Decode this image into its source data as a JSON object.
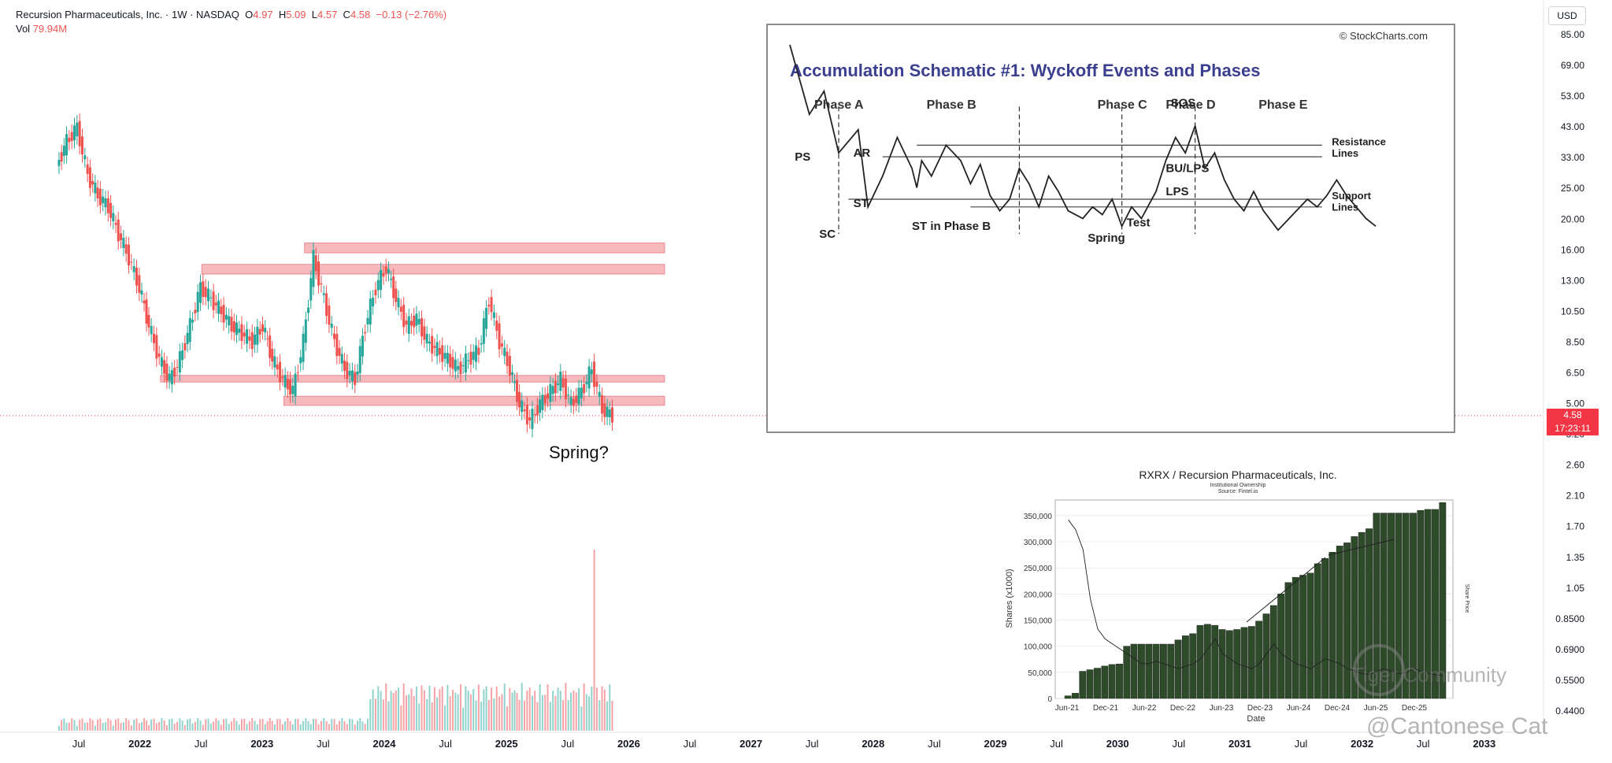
{
  "header": {
    "title": "Recursion Pharmaceuticals, Inc. · 1W · NASDAQ",
    "open_label": "O",
    "open": "4.97",
    "high_label": "H",
    "high": "5.09",
    "low_label": "L",
    "low": "4.57",
    "close_label": "C",
    "close": "4.58",
    "change": "−0.13 (−2.76%)",
    "vol_label": "Vol",
    "vol": "79.94M"
  },
  "price_scale": {
    "currency": "USD",
    "ticks": [
      "85.00",
      "69.00",
      "53.00",
      "43.00",
      "33.00",
      "25.00",
      "20.00",
      "16.00",
      "13.00",
      "10.50",
      "8.50",
      "6.50",
      "5.00",
      "3.20",
      "2.60",
      "2.10",
      "1.70",
      "1.35",
      "1.05",
      "0.8500",
      "0.6900",
      "0.5500",
      "0.4400"
    ],
    "last_price": "4.58",
    "countdown": "17:23:11"
  },
  "time_axis": [
    "Jul",
    "2022",
    "Jul",
    "2023",
    "Jul",
    "2024",
    "Jul",
    "2025",
    "Jul",
    "2026",
    "Jul",
    "2027",
    "Jul",
    "2028",
    "Jul",
    "2029",
    "Jul",
    "2030",
    "Jul",
    "2031",
    "Jul",
    "2032",
    "Jul",
    "2033"
  ],
  "annotation": "Spring?",
  "colors": {
    "up": "#26a69a",
    "down": "#ef5350",
    "zone": "#f4a9ae",
    "bar_dark": "#2f4a2b"
  },
  "chart_data": [
    {
      "type": "candlestick",
      "title": "Recursion Pharmaceuticals, Inc. · 1W · NASDAQ",
      "scale": "log",
      "ylim": [
        0.44,
        85
      ],
      "xlim": [
        "2021-05",
        "2033-06"
      ],
      "close_approx": [
        [
          "2021-06",
          30
        ],
        [
          "2021-07",
          36
        ],
        [
          "2021-08",
          40
        ],
        [
          "2021-09",
          28
        ],
        [
          "2021-10",
          24
        ],
        [
          "2021-11",
          22
        ],
        [
          "2021-12",
          18
        ],
        [
          "2022-01",
          15
        ],
        [
          "2022-02",
          12
        ],
        [
          "2022-03",
          9
        ],
        [
          "2022-04",
          7
        ],
        [
          "2022-05",
          6
        ],
        [
          "2022-06",
          7
        ],
        [
          "2022-07",
          9
        ],
        [
          "2022-08",
          12
        ],
        [
          "2022-09",
          11
        ],
        [
          "2022-10",
          10
        ],
        [
          "2022-11",
          9
        ],
        [
          "2022-12",
          8.5
        ],
        [
          "2023-01",
          8
        ],
        [
          "2023-02",
          9
        ],
        [
          "2023-03",
          7
        ],
        [
          "2023-04",
          6
        ],
        [
          "2023-05",
          5.5
        ],
        [
          "2023-06",
          8
        ],
        [
          "2023-07",
          15
        ],
        [
          "2023-08",
          11
        ],
        [
          "2023-09",
          8
        ],
        [
          "2023-10",
          6.5
        ],
        [
          "2023-11",
          6
        ],
        [
          "2023-12",
          9
        ],
        [
          "2024-01",
          12
        ],
        [
          "2024-02",
          14
        ],
        [
          "2024-03",
          11
        ],
        [
          "2024-04",
          9
        ],
        [
          "2024-05",
          9.5
        ],
        [
          "2024-06",
          8
        ],
        [
          "2024-07",
          7.5
        ],
        [
          "2024-08",
          7
        ],
        [
          "2024-09",
          6.5
        ],
        [
          "2024-10",
          7
        ],
        [
          "2024-11",
          7.5
        ],
        [
          "2024-12",
          11
        ],
        [
          "2025-01",
          8
        ],
        [
          "2025-02",
          6.5
        ],
        [
          "2025-03",
          5
        ],
        [
          "2025-04",
          4.4
        ],
        [
          "2025-05",
          5
        ],
        [
          "2025-06",
          5.5
        ],
        [
          "2025-07",
          6
        ],
        [
          "2025-08",
          5
        ],
        [
          "2025-09",
          5.5
        ],
        [
          "2025-10",
          6.5
        ],
        [
          "2025-11",
          4.8
        ],
        [
          "2025-12",
          4.58
        ]
      ],
      "zones": [
        {
          "from": "2023-06",
          "to": "2026-05",
          "low": 15.6,
          "high": 16.8
        },
        {
          "from": "2022-08",
          "to": "2026-05",
          "low": 13.3,
          "high": 14.3
        },
        {
          "from": "2022-04",
          "to": "2026-05",
          "low": 5.9,
          "high": 6.2
        },
        {
          "from": "2023-04",
          "to": "2026-05",
          "low": 4.95,
          "high": 5.3
        }
      ],
      "volume_note": "weekly volume bars; spike in Oct 2025",
      "last": 4.58
    },
    {
      "type": "line",
      "source": "StockCharts.com",
      "title": "Accumulation Schematic #1: Wyckoff Events and Phases",
      "phases": [
        "Phase A",
        "Phase B",
        "Phase C",
        "Phase D",
        "Phase E"
      ],
      "events": [
        "PS",
        "SC",
        "AR",
        "ST",
        "ST in Phase B",
        "Spring",
        "Test",
        "SOS",
        "LPS",
        "BU/LPS"
      ],
      "line_labels": [
        "Resistance Lines",
        "Support Lines"
      ],
      "phase_boundaries": [
        10,
        47,
        68,
        83
      ],
      "x": [
        0,
        4,
        7,
        10,
        14,
        16,
        19,
        22,
        25,
        26,
        27,
        29,
        32,
        35,
        37,
        39,
        41,
        43,
        45,
        47,
        49,
        51,
        53,
        55,
        57,
        60,
        62,
        64,
        66,
        68,
        70,
        72,
        75,
        77,
        79,
        81,
        83,
        85,
        87,
        89,
        91,
        93,
        95,
        97,
        100,
        103,
        106,
        108,
        110,
        112,
        114,
        116,
        118,
        120
      ],
      "y": [
        100,
        82,
        88,
        72,
        78,
        58,
        66,
        76,
        68,
        63,
        70,
        66,
        74,
        70,
        64,
        69,
        61,
        57,
        60,
        68,
        64,
        58,
        66,
        62,
        57,
        55,
        58,
        56,
        60,
        53,
        58,
        55,
        62,
        70,
        76,
        72,
        79,
        68,
        72,
        65,
        60,
        57,
        62,
        57,
        52,
        56,
        60,
        58,
        61,
        65,
        61,
        58,
        55,
        53
      ],
      "resistance_y": [
        74,
        71
      ],
      "support_y": [
        60,
        58
      ]
    },
    {
      "type": "bar",
      "title": "RXRX / Recursion Pharmaceuticals, Inc.",
      "subtitle": "Institutional Ownership",
      "source_note": "Source: Fintel.io",
      "xlabel": "Date",
      "ylabel": "Shares (x1000)",
      "y2label": "Share Price",
      "ylim": [
        0,
        380000
      ],
      "x_ticks": [
        "Jun-21",
        "Dec-21",
        "Jun-22",
        "Dec-22",
        "Jun-23",
        "Dec-23",
        "Jun-24",
        "Dec-24",
        "Jun-25",
        "Dec-25"
      ],
      "y_ticks": [
        "0",
        "50,000",
        "100,000",
        "150,000",
        "200,000",
        "250,000",
        "300,000",
        "350,000"
      ],
      "values": [
        5000,
        10000,
        52000,
        55000,
        58000,
        62000,
        65000,
        66000,
        100000,
        104000,
        104000,
        104000,
        104000,
        104000,
        104000,
        112000,
        120000,
        124000,
        140000,
        142000,
        140000,
        132000,
        130000,
        132000,
        136000,
        138000,
        148000,
        162000,
        178000,
        200000,
        222000,
        232000,
        236000,
        240000,
        258000,
        268000,
        280000,
        292000,
        298000,
        310000,
        318000,
        325000,
        355000,
        355000,
        355000,
        355000,
        355000,
        355000,
        360000,
        362000,
        362000,
        375000
      ],
      "price_line": [
        36,
        34,
        30,
        20,
        14,
        12,
        11,
        10,
        9,
        8,
        7,
        7,
        7.5,
        7,
        6.5,
        6,
        6.5,
        7,
        8,
        10,
        12,
        9,
        8,
        7,
        6.5,
        6,
        7,
        9,
        11,
        9,
        8,
        7,
        6.5,
        6,
        7,
        8,
        7.5,
        7,
        6,
        5.5,
        5,
        4.8,
        5.5,
        6,
        5.5,
        5,
        5.2,
        6,
        5.5,
        5,
        4.8,
        4.6
      ]
    }
  ],
  "watermark": {
    "top": "Tiger Community",
    "bottom": "@Cantonese Cat"
  }
}
